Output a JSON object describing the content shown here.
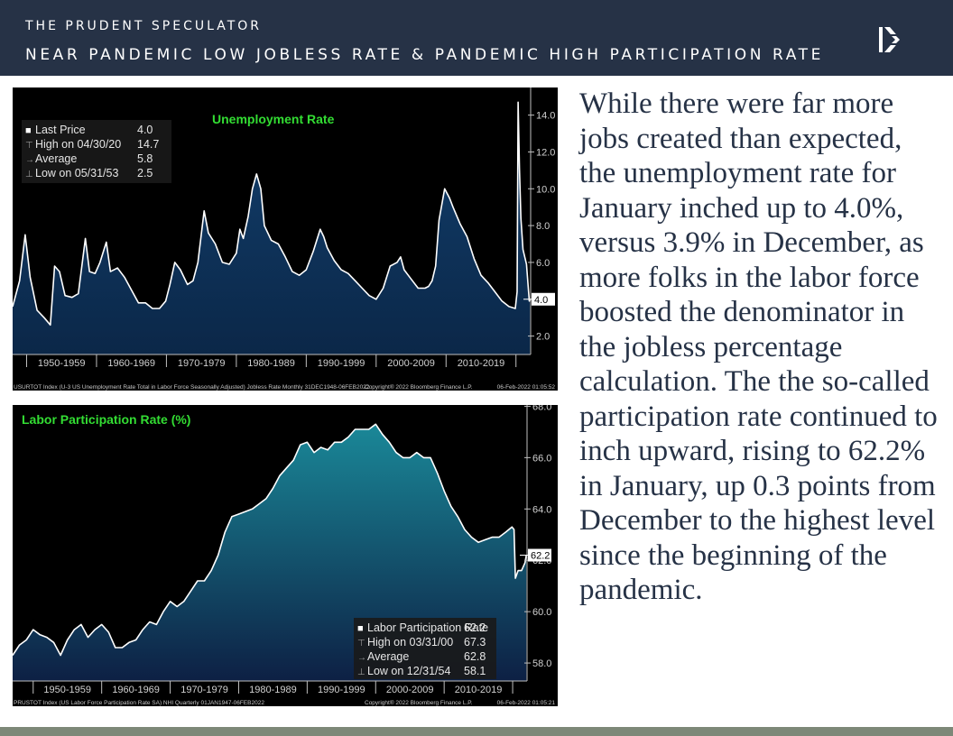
{
  "header": {
    "brand": "THE PRUDENT SPECULATOR",
    "subtitle": "NEAR PANDEMIC LOW JOBLESS RATE & PANDEMIC HIGH PARTICIPATION RATE"
  },
  "body_text": "While there were far more jobs created than expected, the unemployment rate for January inched up to 4.0%, versus 3.9% in December, as more folks in the labor force boosted the denominator in the jobless percentage calculation. The the so-called participation rate continued to inch upward, rising to 62.2% in January, up 0.3 points from December to the highest level since the beginning of the pandemic.",
  "colors": {
    "header_bg": "#263246",
    "title_green": "#33dd33",
    "chart_bg": "#000000",
    "unemp_fill": "#123560",
    "lfpr_fill": "#1a7e8e",
    "footer_bar": "#7d8878"
  },
  "chart_data": [
    {
      "type": "area",
      "title": "Unemployment Rate",
      "legend": {
        "placement": "top-left",
        "rows": [
          {
            "label": "Last Price",
            "value": "4.0"
          },
          {
            "label": "High on 04/30/20",
            "value": "14.7"
          },
          {
            "label": "Average",
            "value": "5.8"
          },
          {
            "label": "Low on 05/31/53",
            "value": "2.5"
          }
        ]
      },
      "last_value_label": "4.0",
      "x_tick_labels": [
        "1950-1959",
        "1960-1969",
        "1970-1979",
        "1980-1989",
        "1990-1999",
        "2000-2009",
        "2010-2019"
      ],
      "y_ticks": [
        "2.0",
        "4.0",
        "6.0",
        "8.0",
        "10.0",
        "12.0",
        "14.0"
      ],
      "ylim": [
        1.0,
        15.5
      ],
      "xlim": [
        1948.0,
        2022.1
      ],
      "grid": false,
      "footer_left": "USURTOT Index (U-3 US Unemployment Rate Total in Labor Force Seasonally Adjusted) Jobless Rate  Monthly 31DEC1948-06FEB2022",
      "footer_mid": "Copyright® 2022 Bloomberg Finance L.P.",
      "footer_right": "06-Feb-2022 01:05:52",
      "x": [
        1948.0,
        1949.0,
        1949.8,
        1950.5,
        1951.5,
        1952.5,
        1953.4,
        1954.0,
        1954.7,
        1955.5,
        1956.5,
        1957.4,
        1958.4,
        1959.0,
        1959.8,
        1960.5,
        1961.4,
        1962.0,
        1963.0,
        1964.0,
        1965.0,
        1966.0,
        1967.0,
        1968.0,
        1969.0,
        1969.9,
        1970.5,
        1971.2,
        1972.0,
        1973.0,
        1973.8,
        1974.5,
        1975.4,
        1976.0,
        1977.0,
        1978.0,
        1979.0,
        1980.0,
        1980.5,
        1981.0,
        1981.7,
        1982.3,
        1982.9,
        1983.5,
        1984.0,
        1985.0,
        1986.0,
        1987.0,
        1988.0,
        1989.0,
        1990.0,
        1991.0,
        1992.0,
        1992.5,
        1993.0,
        1994.0,
        1995.0,
        1996.0,
        1997.0,
        1998.0,
        1999.0,
        2000.0,
        2001.0,
        2002.0,
        2003.0,
        2003.5,
        2004.0,
        2005.0,
        2006.0,
        2007.0,
        2007.5,
        2008.0,
        2008.5,
        2009.0,
        2009.8,
        2010.5,
        2011.0,
        2012.0,
        2013.0,
        2014.0,
        2015.0,
        2016.0,
        2017.0,
        2018.0,
        2019.0,
        2019.9,
        2020.17,
        2020.3,
        2020.5,
        2020.7,
        2021.0,
        2021.5,
        2021.9,
        2022.0
      ],
      "values": [
        3.6,
        5.0,
        7.5,
        5.2,
        3.4,
        3.0,
        2.6,
        5.8,
        5.5,
        4.2,
        4.1,
        4.3,
        7.3,
        5.5,
        5.4,
        6.0,
        7.1,
        5.5,
        5.7,
        5.2,
        4.5,
        3.8,
        3.8,
        3.5,
        3.5,
        3.9,
        4.8,
        6.0,
        5.6,
        4.8,
        5.0,
        6.0,
        8.8,
        7.6,
        7.0,
        6.0,
        5.9,
        6.5,
        7.8,
        7.3,
        8.5,
        10.0,
        10.8,
        10.0,
        8.0,
        7.2,
        7.0,
        6.3,
        5.5,
        5.3,
        5.6,
        6.6,
        7.8,
        7.4,
        6.8,
        6.1,
        5.6,
        5.4,
        5.0,
        4.6,
        4.2,
        4.0,
        4.6,
        5.8,
        6.0,
        6.3,
        5.6,
        5.1,
        4.6,
        4.6,
        4.7,
        5.0,
        5.8,
        8.3,
        10.0,
        9.5,
        9.0,
        8.1,
        7.4,
        6.2,
        5.3,
        4.9,
        4.4,
        3.9,
        3.6,
        3.5,
        4.4,
        14.7,
        11.1,
        8.4,
        6.7,
        5.9,
        3.9,
        4.0
      ]
    },
    {
      "type": "area",
      "title": "Labor Participation Rate (%)",
      "legend": {
        "placement": "bottom-right",
        "rows": [
          {
            "label": "Labor Participation Rate",
            "value": "62.2"
          },
          {
            "label": "High on 03/31/00",
            "value": "67.3"
          },
          {
            "label": "Average",
            "value": "62.8"
          },
          {
            "label": "Low on 12/31/54",
            "value": "58.1"
          }
        ]
      },
      "last_value_label": "62.2",
      "x_tick_labels": [
        "1950-1959",
        "1960-1969",
        "1970-1979",
        "1980-1989",
        "1990-1999",
        "2000-2009",
        "2010-2019"
      ],
      "y_ticks": [
        "58.0",
        "60.0",
        "62.0",
        "64.0",
        "66.0",
        "68.0"
      ],
      "ylim": [
        57.3,
        68.05
      ],
      "xlim": [
        1947.0,
        2022.1
      ],
      "grid": false,
      "footer_left": "PRUSTOT Index (US Labor Force Participation Rate SA) NHI  Quarterly 01JAN1947-06FEB2022",
      "footer_mid": "Copyright® 2022 Bloomberg Finance L.P.",
      "footer_right": "06-Feb-2022 01:05:21",
      "x": [
        1947.0,
        1948.0,
        1949.0,
        1950.0,
        1951.0,
        1952.0,
        1953.0,
        1954.0,
        1955.0,
        1956.0,
        1957.0,
        1958.0,
        1959.0,
        1960.0,
        1961.0,
        1962.0,
        1963.0,
        1964.0,
        1965.0,
        1966.0,
        1967.0,
        1968.0,
        1969.0,
        1970.0,
        1971.0,
        1972.0,
        1973.0,
        1974.0,
        1975.0,
        1976.0,
        1977.0,
        1978.0,
        1979.0,
        1980.0,
        1981.0,
        1982.0,
        1983.0,
        1984.0,
        1985.0,
        1986.0,
        1987.0,
        1988.0,
        1989.0,
        1990.0,
        1991.0,
        1992.0,
        1993.0,
        1994.0,
        1995.0,
        1996.0,
        1997.0,
        1998.0,
        1999.0,
        2000.0,
        2001.0,
        2002.0,
        2003.0,
        2004.0,
        2005.0,
        2006.0,
        2007.0,
        2008.0,
        2009.0,
        2010.0,
        2011.0,
        2012.0,
        2013.0,
        2014.0,
        2015.0,
        2016.0,
        2017.0,
        2018.0,
        2019.0,
        2019.9,
        2020.2,
        2020.4,
        2020.8,
        2021.3,
        2021.8,
        2022.0
      ],
      "values": [
        58.3,
        58.7,
        58.9,
        59.3,
        59.1,
        59.0,
        58.8,
        58.3,
        58.9,
        59.3,
        59.5,
        59.0,
        59.3,
        59.5,
        59.2,
        58.6,
        58.6,
        58.8,
        58.9,
        59.3,
        59.6,
        59.5,
        60.0,
        60.4,
        60.2,
        60.4,
        60.8,
        61.2,
        61.2,
        61.6,
        62.2,
        63.1,
        63.7,
        63.8,
        63.9,
        64.0,
        64.2,
        64.4,
        64.8,
        65.3,
        65.6,
        65.9,
        66.5,
        66.6,
        66.2,
        66.4,
        66.3,
        66.6,
        66.6,
        66.8,
        67.1,
        67.1,
        67.1,
        67.3,
        66.9,
        66.6,
        66.2,
        66.0,
        66.0,
        66.2,
        66.0,
        66.0,
        65.4,
        64.7,
        64.1,
        63.7,
        63.2,
        62.9,
        62.7,
        62.8,
        62.9,
        62.9,
        63.1,
        63.3,
        63.2,
        61.3,
        61.6,
        61.6,
        61.9,
        62.2
      ]
    }
  ]
}
